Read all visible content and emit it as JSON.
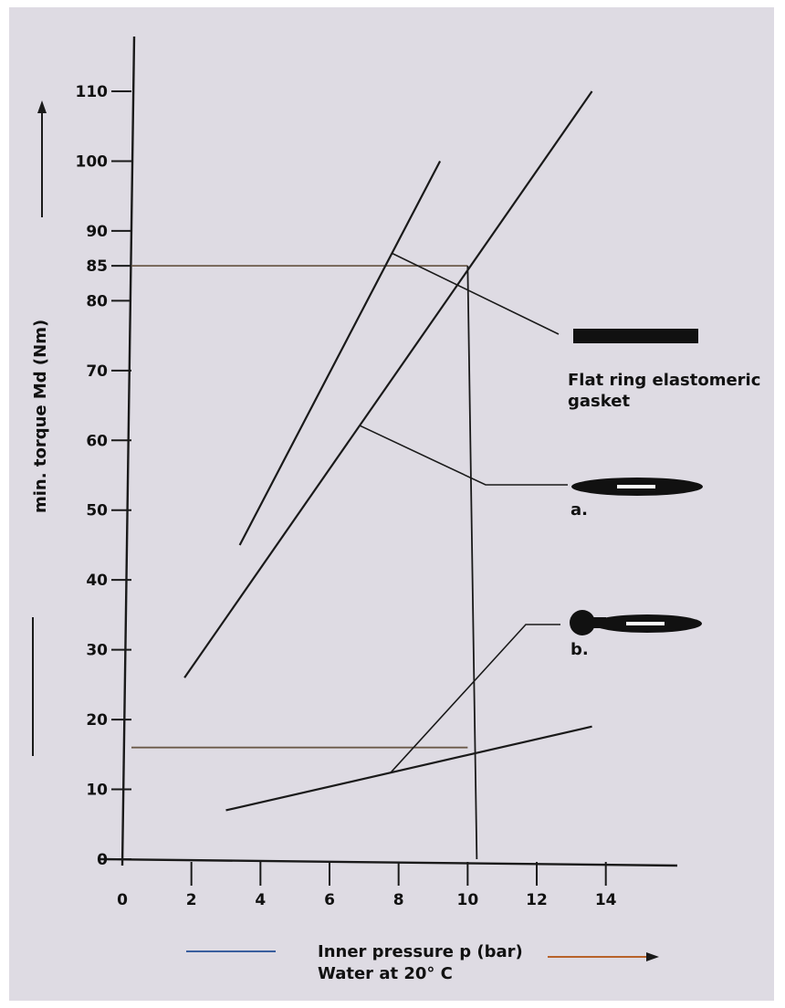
{
  "chart_data": {
    "type": "line",
    "ylabel": "min. torque Md (Nm)",
    "xlabel_line1": "Inner pressure p (bar)",
    "xlabel_line2": "Water at 20° C",
    "xlim": [
      0,
      16
    ],
    "ylim": [
      0,
      115
    ],
    "x_ticks": [
      0,
      2,
      4,
      6,
      8,
      10,
      12,
      14
    ],
    "y_ticks": [
      0,
      10,
      20,
      30,
      40,
      50,
      60,
      70,
      80,
      85,
      90,
      100,
      110
    ],
    "series": [
      {
        "key": "flat",
        "x": [
          3.4,
          9.2
        ],
        "y": [
          45,
          100
        ]
      },
      {
        "key": "a",
        "x": [
          1.8,
          13.6
        ],
        "y": [
          26,
          110
        ]
      },
      {
        "key": "b",
        "x": [
          3.0,
          13.6
        ],
        "y": [
          7,
          19
        ]
      }
    ],
    "reference_lines": [
      {
        "key": "ref85",
        "x": [
          0,
          10
        ],
        "y": [
          85,
          85
        ]
      },
      {
        "key": "ref16",
        "x": [
          0,
          10
        ],
        "y": [
          16,
          16
        ]
      },
      {
        "key": "refx10",
        "x": [
          10,
          10
        ],
        "y": [
          0,
          85
        ]
      }
    ],
    "legend": [
      {
        "series": "flat",
        "label_lines": [
          "Flat ring elastomeric",
          "gasket"
        ],
        "symbol": "flat-ring-gasket"
      },
      {
        "series": "a",
        "label_lines": [
          "a."
        ],
        "symbol": "gasket-profile-a"
      },
      {
        "series": "b",
        "label_lines": [
          "b."
        ],
        "symbol": "gasket-profile-b"
      }
    ],
    "colors": {
      "background": "#dedbe3",
      "line": "#1a1a1a",
      "reference": "#6b5a4a",
      "blue_accent": "#3a5f9e",
      "orange_accent": "#b8622a"
    }
  }
}
